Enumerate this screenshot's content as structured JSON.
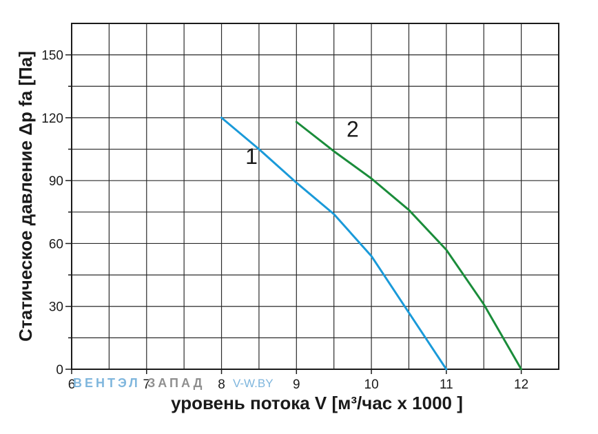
{
  "chart_data": {
    "type": "line",
    "xlabel": "уровень потока  V [м³/час х 1000 ]",
    "ylabel": "Статическое давление  Δp fa [Па]",
    "xlim": [
      6,
      12.5
    ],
    "ylim": [
      0,
      165
    ],
    "x_ticks": [
      6,
      7,
      8,
      9,
      10,
      11,
      12
    ],
    "y_ticks": [
      0,
      30,
      60,
      90,
      120,
      150
    ],
    "grid": true,
    "series": [
      {
        "name": "1",
        "color": "#1a9ad9",
        "points": [
          [
            8.0,
            120
          ],
          [
            8.5,
            105
          ],
          [
            9.0,
            89
          ],
          [
            9.5,
            74
          ],
          [
            10.0,
            54
          ],
          [
            10.5,
            27
          ],
          [
            11.0,
            0
          ]
        ]
      },
      {
        "name": "2",
        "color": "#1a8c3a",
        "points": [
          [
            9.0,
            118
          ],
          [
            9.5,
            104
          ],
          [
            10.0,
            91
          ],
          [
            10.5,
            76
          ],
          [
            11.0,
            57
          ],
          [
            11.5,
            31
          ],
          [
            12.0,
            0
          ]
        ]
      }
    ],
    "annotations": [
      {
        "text": "1",
        "x": 8.4,
        "y": 98
      },
      {
        "text": "2",
        "x": 9.75,
        "y": 111
      }
    ]
  },
  "watermark": {
    "part1": "ВЕНТЭЛ",
    "part2": "ЗАПАД",
    "part3": "V-W.BY",
    "color1": "#7fb6dd",
    "color2": "#8f8f8f"
  }
}
